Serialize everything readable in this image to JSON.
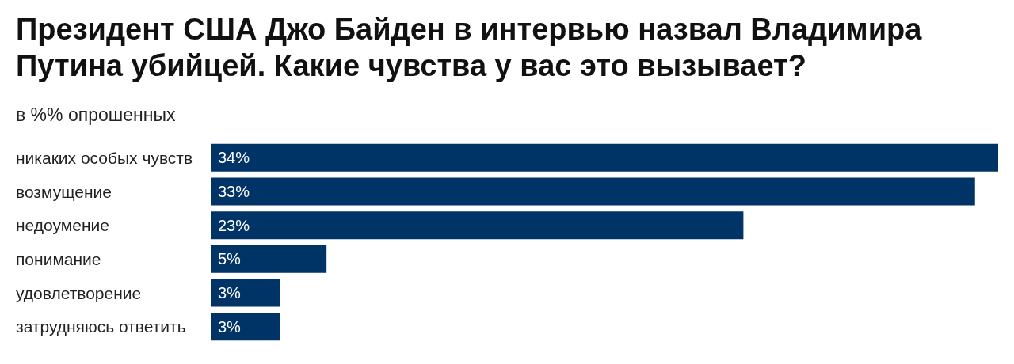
{
  "chart_data": {
    "type": "bar",
    "orientation": "horizontal",
    "title": "Президент США Джо Байден в интервью назвал Владимира Путина убийцей. Какие чувства у вас это вызывает?",
    "subtitle": "в %% опрошенных",
    "categories": [
      "никаких особых чувств",
      "возмущение",
      "недоумение",
      "понимание",
      "удовлетворение",
      "затрудняюсь ответить"
    ],
    "values": [
      34,
      33,
      23,
      5,
      3,
      3
    ],
    "value_labels": [
      "34%",
      "33%",
      "23%",
      "5%",
      "3%",
      "3%"
    ],
    "color": "#003366"
  }
}
